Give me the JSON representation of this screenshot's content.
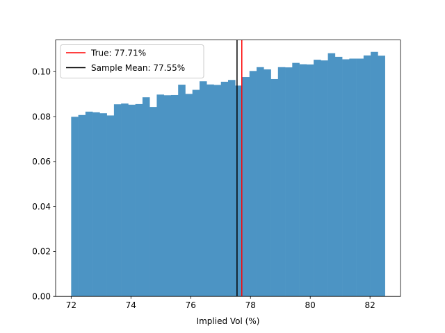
{
  "chart_data": {
    "type": "bar",
    "subtype": "histogram",
    "title": "",
    "xlabel": "Implied Vol (%)",
    "ylabel": "",
    "xlim": [
      71.48,
      83.02
    ],
    "ylim": [
      0,
      0.1141
    ],
    "xticks": [
      "72",
      "74",
      "76",
      "78",
      "80",
      "82"
    ],
    "yticks": [
      "0.00",
      "0.02",
      "0.04",
      "0.06",
      "0.08",
      "0.10"
    ],
    "bins": {
      "start": 72.0,
      "end": 82.5,
      "heights": [
        0.0799,
        0.0807,
        0.0822,
        0.0819,
        0.0815,
        0.0805,
        0.0855,
        0.0858,
        0.0853,
        0.0856,
        0.0886,
        0.0843,
        0.0898,
        0.0895,
        0.0896,
        0.0942,
        0.0901,
        0.0919,
        0.0957,
        0.0943,
        0.0941,
        0.0955,
        0.0963,
        0.0938,
        0.0976,
        0.1003,
        0.102,
        0.101,
        0.0967,
        0.102,
        0.1019,
        0.1039,
        0.1033,
        0.1032,
        0.1053,
        0.105,
        0.1082,
        0.1066,
        0.1055,
        0.1058,
        0.1058,
        0.1072,
        0.1088,
        0.1071
      ],
      "color": "#4c94c4"
    },
    "vlines": [
      {
        "name": "True: 77.71%",
        "x": 77.71,
        "color": "#ff0000"
      },
      {
        "name": "Sample Mean: 77.55%",
        "x": 77.55,
        "color": "#000000"
      }
    ],
    "legend": {
      "position": "top-left",
      "entries": [
        {
          "label": "True: 77.71%",
          "color": "#ff0000"
        },
        {
          "label": "Sample Mean: 77.55%",
          "color": "#000000"
        }
      ]
    },
    "grid": false
  }
}
